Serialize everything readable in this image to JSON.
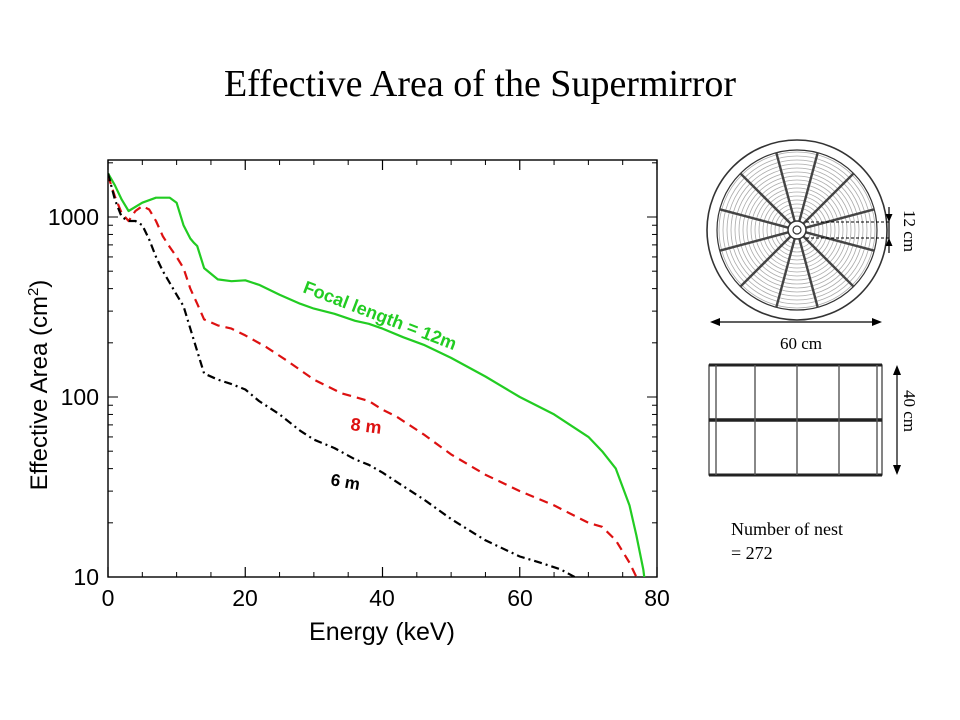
{
  "slide": {
    "title": "Effective Area of the Supermirror"
  },
  "chart_data": {
    "type": "line",
    "title": "",
    "xlabel": "Energy (keV)",
    "ylabel": "Effective Area (cm²)",
    "ylabel_main": "Effective Area (cm",
    "ylabel_sup": "2",
    "ylabel_close": ")",
    "xlim": [
      0,
      80
    ],
    "ylim": [
      10,
      2000
    ],
    "yscale": "log",
    "x_ticks": [
      0,
      20,
      40,
      60,
      80
    ],
    "x_tick_labels": [
      "0",
      "20",
      "40",
      "60",
      "80"
    ],
    "y_ticks": [
      10,
      100,
      1000
    ],
    "y_tick_labels": [
      "10",
      "100",
      "1000"
    ],
    "grid": false,
    "series": [
      {
        "name": "Focal length = 12m",
        "color": "#22cc22",
        "style": "solid",
        "x": [
          0,
          1,
          2,
          3,
          5,
          7,
          9,
          10,
          11,
          12,
          12.5,
          13,
          14,
          16,
          18,
          20,
          22,
          25,
          28,
          30,
          33,
          36,
          38,
          40,
          43,
          46,
          50,
          55,
          60,
          65,
          70,
          72,
          74,
          76,
          77,
          78,
          78.3
        ],
        "y": [
          1750,
          1500,
          1250,
          1080,
          1200,
          1280,
          1280,
          1200,
          900,
          760,
          720,
          690,
          520,
          450,
          440,
          445,
          420,
          370,
          330,
          310,
          290,
          265,
          255,
          240,
          215,
          195,
          165,
          130,
          100,
          80,
          60,
          50,
          40,
          25,
          17,
          11,
          9
        ]
      },
      {
        "name": "8 m",
        "color": "#dd1111",
        "style": "dashed",
        "x": [
          0,
          1,
          2,
          3,
          4,
          5,
          6,
          7,
          8,
          9,
          10,
          11,
          12,
          13,
          14,
          16,
          18,
          20,
          23,
          26,
          30,
          34,
          38,
          40,
          42,
          46,
          50,
          55,
          60,
          65,
          70,
          72,
          74,
          76,
          77,
          78
        ],
        "y": [
          1700,
          1300,
          1050,
          950,
          1080,
          1150,
          1100,
          950,
          780,
          680,
          600,
          520,
          400,
          330,
          270,
          250,
          240,
          220,
          190,
          160,
          125,
          105,
          95,
          85,
          78,
          62,
          48,
          37,
          30,
          25,
          20,
          19,
          16,
          12,
          10,
          9
        ]
      },
      {
        "name": "6 m",
        "color": "#000000",
        "style": "dashdot",
        "x": [
          0,
          1,
          2,
          3,
          4,
          5,
          6,
          7,
          8,
          9,
          10,
          11,
          12,
          13,
          14,
          16,
          18,
          20,
          22,
          25,
          28,
          30,
          33,
          36,
          38,
          40,
          43,
          46,
          50,
          55,
          60,
          63,
          66,
          68
        ],
        "y": [
          1750,
          1250,
          1000,
          950,
          950,
          900,
          750,
          600,
          500,
          430,
          370,
          320,
          240,
          180,
          135,
          125,
          118,
          110,
          95,
          80,
          65,
          58,
          52,
          45,
          42,
          38,
          32,
          27,
          21,
          16,
          13,
          12,
          11,
          10
        ]
      }
    ],
    "annotations": [
      {
        "text": "Focal length = 12m",
        "color": "#22cc22"
      },
      {
        "text": "8 m",
        "color": "#dd1111"
      },
      {
        "text": "6 m",
        "color": "#000000"
      }
    ]
  },
  "diagram": {
    "top_view_size": "12 cm",
    "diameter": "60 cm",
    "height": "40 cm",
    "nest_line1": "Number of nest",
    "nest_line2": "= 272"
  }
}
